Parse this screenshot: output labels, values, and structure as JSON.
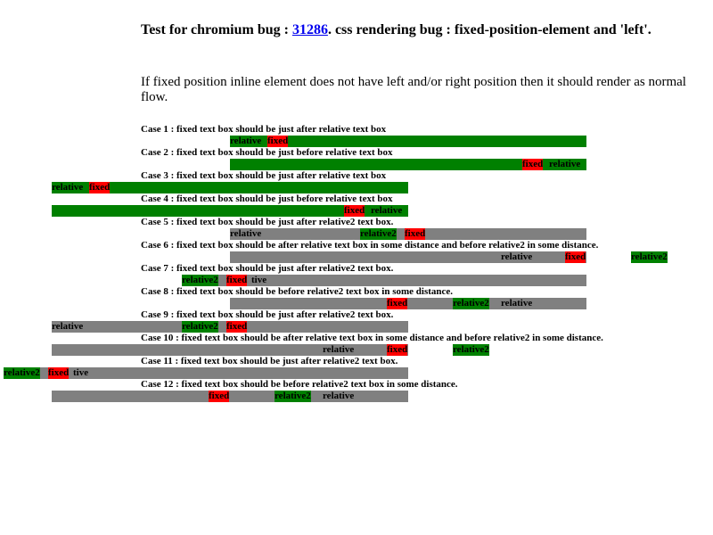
{
  "header": {
    "title_prefix": "Test for chromium bug : ",
    "bug_link": "31286",
    "title_suffix": ". css rendering bug : fixed-position-element and 'left'.",
    "intro": "If fixed position inline element does not have left and/or right position then it should render as normal flow."
  },
  "cases": [
    {
      "label": "Case 1 : fixed text box should be just after relative text box"
    },
    {
      "label": "Case 2 : fixed text box should be just before relative text box"
    },
    {
      "label": "Case 3 : fixed text box should be just after relative text box"
    },
    {
      "label": "Case 4 : fixed text box should be just before relative text box"
    },
    {
      "label": "Case 5 : fixed text box should be just after relative2 text box."
    },
    {
      "label": "Case 6 : fixed text box should be after relative text box in some distance and before relative2 in some distance."
    },
    {
      "label": "Case 7 : fixed text box should be just after relative2 text box."
    },
    {
      "label": "Case 8 : fixed text box should be before relative2 text box in some distance."
    },
    {
      "label": "Case 9 : fixed text box should be just after relative2 text box."
    },
    {
      "label": "Case 10 : fixed text box should be after relative text box in some distance and before relative2 in some distance."
    },
    {
      "label": "Case 11 : fixed text box should be just after relative2 text box."
    },
    {
      "label": "Case 12 : fixed text box should be before relative2 text box in some distance."
    }
  ],
  "words": {
    "relative": "relative",
    "fixed": "fixed",
    "relative2": "relative2",
    "tive": "tive"
  },
  "colors": {
    "fixed_box": "#ff0000",
    "relative_box": "#008000",
    "container_green": "#008000",
    "container_gray": "#808080",
    "link": "#0000ee"
  }
}
